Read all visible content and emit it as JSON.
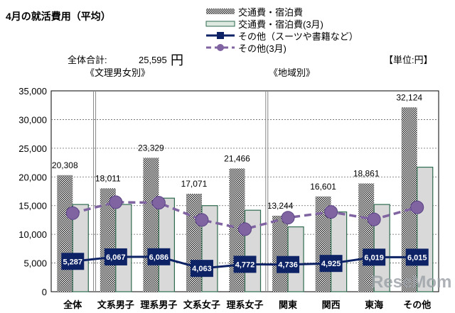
{
  "chart_data": {
    "type": "bar",
    "title": "4月の就活費用（平均）",
    "total_label": "全体合計:",
    "total_value": "25,595",
    "total_unit": "円",
    "unit_note": "【単位:円】",
    "group_labels": [
      "《文理男女別》",
      "《地域別》"
    ],
    "categories": [
      "全体",
      "文系男子",
      "理系男子",
      "文系女子",
      "理系女子",
      "関東",
      "関西",
      "東海",
      "その他"
    ],
    "ylim": [
      0,
      35000
    ],
    "yticks": [
      0,
      5000,
      10000,
      15000,
      20000,
      25000,
      30000,
      35000
    ],
    "ytick_labels": [
      "0",
      "5,000",
      "10,000",
      "15,000",
      "20,000",
      "25,000",
      "30,000",
      "35,000"
    ],
    "grid": true,
    "legend_placement": "top",
    "series": [
      {
        "name": "交通費・宿泊費",
        "kind": "bar",
        "color": "#333333",
        "values": [
          20308,
          18011,
          23329,
          17071,
          21466,
          13244,
          16601,
          18861,
          32124
        ],
        "labels": [
          "20,308",
          "18,011",
          "23,329",
          "17,071",
          "21,466",
          "13,244",
          "16,601",
          "18,861",
          "32,124"
        ]
      },
      {
        "name": "交通費・宿泊費(3月)",
        "kind": "bar",
        "color": "#d9d9d9",
        "edge": "#2e6b4f",
        "values": [
          15200,
          15200,
          16300,
          15000,
          14200,
          11300,
          13900,
          15200,
          21700
        ]
      },
      {
        "name": "その他（スーツや書籍など）",
        "kind": "line",
        "color": "#0d2366",
        "values": [
          5287,
          6067,
          6086,
          4063,
          4772,
          4736,
          4925,
          6019,
          6015
        ],
        "labels": [
          "5,287",
          "6,067",
          "6,086",
          "4,063",
          "4,772",
          "4,736",
          "4,925",
          "6,019",
          "6,015"
        ]
      },
      {
        "name": "その他(3月)",
        "kind": "line",
        "style": "dashed",
        "color": "#8064a2",
        "values": [
          13700,
          15600,
          15500,
          12500,
          10900,
          12900,
          13900,
          12600,
          14700
        ]
      }
    ]
  },
  "watermark": "ReseMom"
}
